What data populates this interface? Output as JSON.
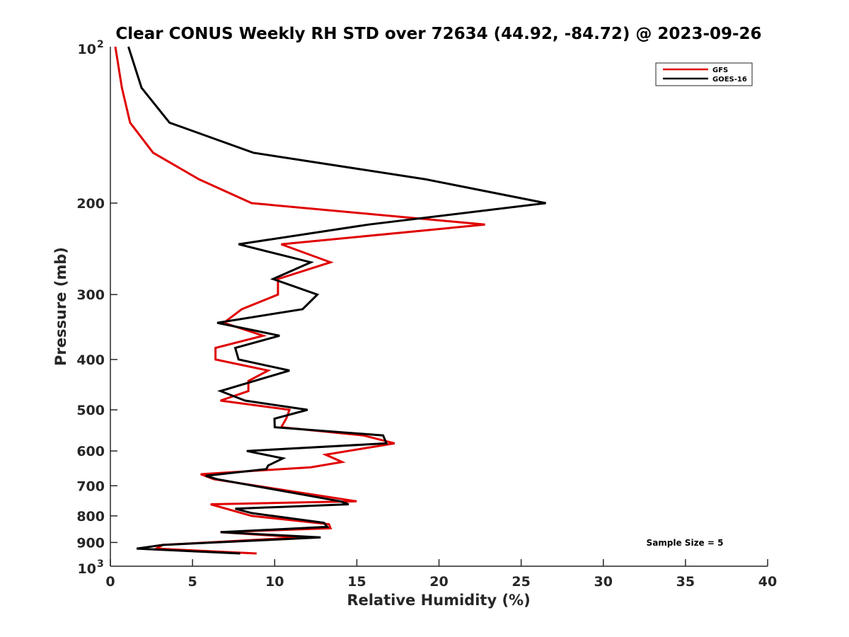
{
  "chart_data": {
    "type": "line",
    "title": "Clear CONUS Weekly RH STD over 72634 (44.92, -84.72) @ 2023-09-26",
    "xlabel": "Relative Humidity (%)",
    "ylabel": "Pressure (mb)",
    "xlim": [
      0,
      40
    ],
    "ylim": [
      100,
      1000
    ],
    "yscale": "log",
    "y_reversed": true,
    "grid": false,
    "x_ticks": [
      0,
      5,
      10,
      15,
      20,
      25,
      30,
      35,
      40
    ],
    "x_tick_labels": [
      "0",
      "5",
      "10",
      "15",
      "20",
      "25",
      "30",
      "35",
      "40"
    ],
    "y_ticks": [
      100,
      200,
      300,
      400,
      500,
      600,
      700,
      800,
      900,
      1000
    ],
    "y_tick_labels": [
      {
        "base": "10",
        "exp": "2"
      },
      {
        "base": "200",
        "exp": ""
      },
      {
        "base": "300",
        "exp": ""
      },
      {
        "base": "400",
        "exp": ""
      },
      {
        "base": "500",
        "exp": ""
      },
      {
        "base": "600",
        "exp": ""
      },
      {
        "base": "700",
        "exp": ""
      },
      {
        "base": "800",
        "exp": ""
      },
      {
        "base": "900",
        "exp": ""
      },
      {
        "base": "10",
        "exp": "3"
      }
    ],
    "legend": {
      "placement": "top-right",
      "entries": [
        {
          "name": "GFS",
          "color": "#e00000"
        },
        {
          "name": "GOES-16",
          "color": "#000000"
        }
      ]
    },
    "annotation": "Sample Size = 5",
    "series": [
      {
        "name": "GFS",
        "color": "#e00000",
        "points": [
          [
            0.3,
            100
          ],
          [
            0.7,
            120
          ],
          [
            1.2,
            140
          ],
          [
            2.6,
            160
          ],
          [
            5.4,
            180
          ],
          [
            8.6,
            200
          ],
          [
            22.8,
            220
          ],
          [
            10.4,
            240
          ],
          [
            13.4,
            260
          ],
          [
            10.2,
            280
          ],
          [
            10.2,
            300
          ],
          [
            8.0,
            320
          ],
          [
            6.9,
            340
          ],
          [
            9.3,
            360
          ],
          [
            6.4,
            380
          ],
          [
            6.4,
            400
          ],
          [
            9.6,
            420
          ],
          [
            8.4,
            440
          ],
          [
            8.4,
            460
          ],
          [
            6.7,
            480
          ],
          [
            10.9,
            500
          ],
          [
            10.7,
            520
          ],
          [
            10.4,
            540
          ],
          [
            15.4,
            560
          ],
          [
            17.3,
            580
          ],
          [
            13.1,
            610
          ],
          [
            14.1,
            630
          ],
          [
            12.2,
            645
          ],
          [
            5.5,
            665
          ],
          [
            6.3,
            680
          ],
          [
            14.99,
            750
          ],
          [
            6.1,
            760
          ],
          [
            8.6,
            800
          ],
          [
            13.3,
            830
          ],
          [
            13.4,
            845
          ],
          [
            6.7,
            860
          ],
          [
            11.6,
            880
          ],
          [
            3.2,
            910
          ],
          [
            2.8,
            925
          ],
          [
            8.9,
            945
          ]
        ]
      },
      {
        "name": "GOES-16",
        "color": "#000000",
        "points": [
          [
            1.1,
            100
          ],
          [
            1.9,
            120
          ],
          [
            3.6,
            140
          ],
          [
            8.7,
            160
          ],
          [
            19.2,
            180
          ],
          [
            26.5,
            200
          ],
          [
            15.7,
            220
          ],
          [
            7.8,
            240
          ],
          [
            12.2,
            260
          ],
          [
            9.9,
            280
          ],
          [
            12.6,
            300
          ],
          [
            11.7,
            320
          ],
          [
            6.5,
            340
          ],
          [
            10.3,
            360
          ],
          [
            7.6,
            380
          ],
          [
            7.8,
            400
          ],
          [
            10.9,
            420
          ],
          [
            6.7,
            460
          ],
          [
            8.2,
            480
          ],
          [
            12.0,
            500
          ],
          [
            9.99,
            520
          ],
          [
            10.0,
            540
          ],
          [
            16.6,
            560
          ],
          [
            16.8,
            580
          ],
          [
            8.3,
            600
          ],
          [
            10.5,
            620
          ],
          [
            9.6,
            640
          ],
          [
            9.5,
            650
          ],
          [
            5.8,
            670
          ],
          [
            6.5,
            680
          ],
          [
            14.0,
            750
          ],
          [
            14.5,
            760
          ],
          [
            7.6,
            775
          ],
          [
            8.6,
            790
          ],
          [
            13.0,
            825
          ],
          [
            13.2,
            840
          ],
          [
            6.7,
            860
          ],
          [
            12.8,
            880
          ],
          [
            3.2,
            910
          ],
          [
            1.6,
            925
          ],
          [
            7.9,
            945
          ]
        ]
      }
    ]
  }
}
